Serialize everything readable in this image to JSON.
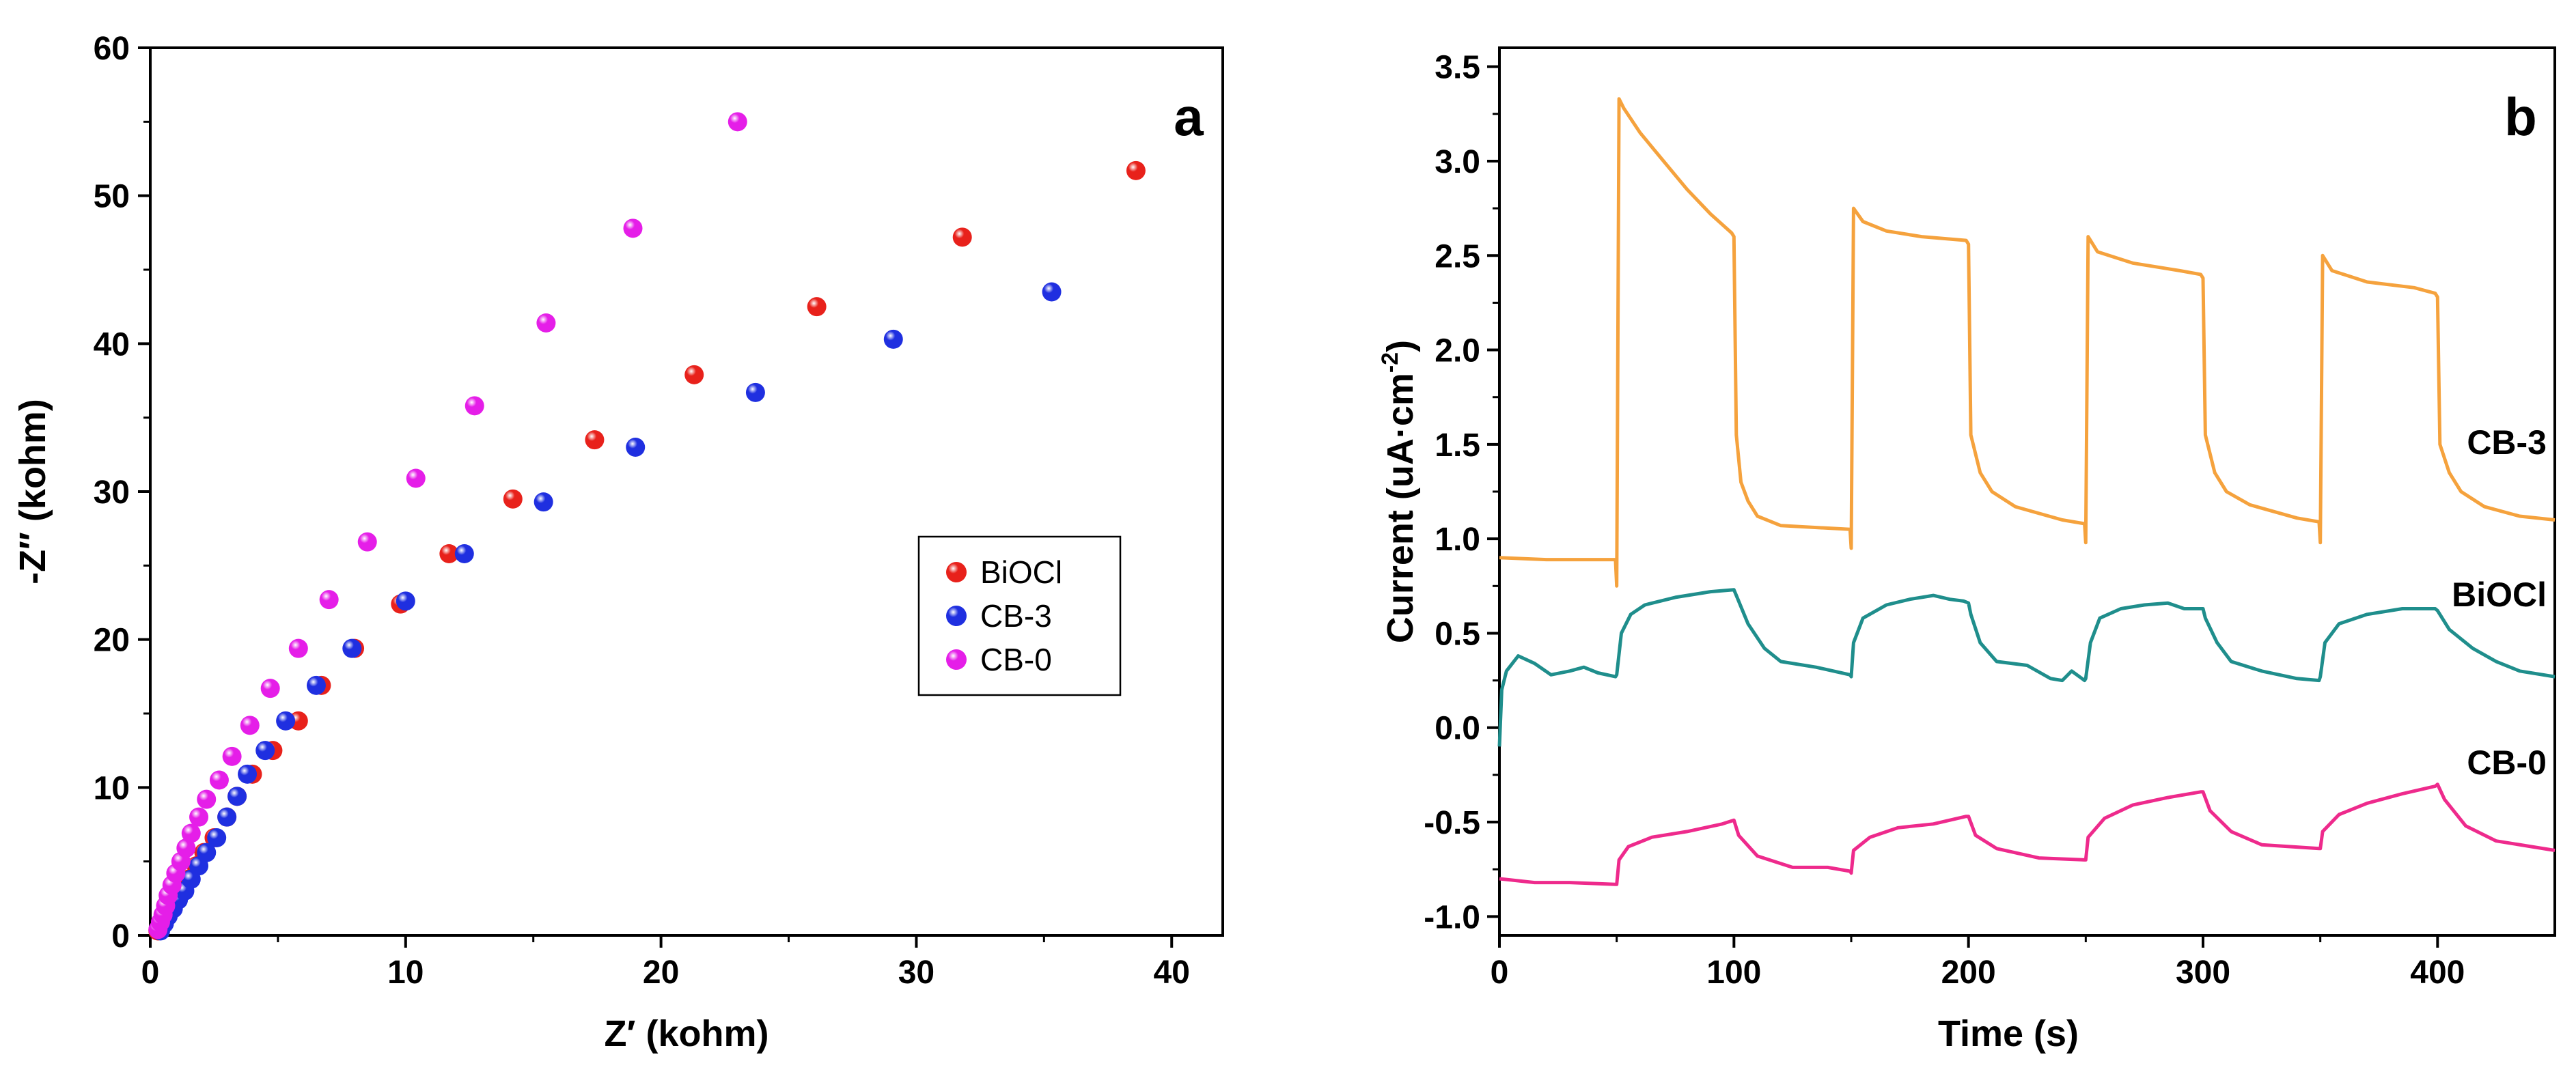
{
  "figure": {
    "panels": [
      "a",
      "b"
    ]
  },
  "chart_data": [
    {
      "type": "scatter",
      "panel_label": "a",
      "title": "",
      "xlabel": "Z′ (kohm)",
      "ylabel": "-Z″ (kohm)",
      "xlim": [
        0,
        42
      ],
      "ylim": [
        0,
        60
      ],
      "xticks": [
        0,
        10,
        20,
        30,
        40
      ],
      "yticks": [
        0,
        10,
        20,
        30,
        40,
        50,
        60
      ],
      "grid": false,
      "legend_position": "center-right",
      "series": [
        {
          "name": "BiOCl",
          "color": "#e8211b",
          "points": [
            [
              0.3,
              0.3
            ],
            [
              0.45,
              0.8
            ],
            [
              0.6,
              1.3
            ],
            [
              0.8,
              1.8
            ],
            [
              1.0,
              2.4
            ],
            [
              1.25,
              3.0
            ],
            [
              1.5,
              3.8
            ],
            [
              1.8,
              4.7
            ],
            [
              2.1,
              5.6
            ],
            [
              2.5,
              6.6
            ],
            [
              3.0,
              8.0
            ],
            [
              3.4,
              9.4
            ],
            [
              4.0,
              10.9
            ],
            [
              4.8,
              12.5
            ],
            [
              5.8,
              14.5
            ],
            [
              6.7,
              16.9
            ],
            [
              8.0,
              19.4
            ],
            [
              9.8,
              22.4
            ],
            [
              11.7,
              25.8
            ],
            [
              14.2,
              29.5
            ],
            [
              17.4,
              33.5
            ],
            [
              21.3,
              37.9
            ],
            [
              26.1,
              42.5
            ],
            [
              31.8,
              47.2
            ],
            [
              38.6,
              51.7
            ]
          ]
        },
        {
          "name": "CB-3",
          "color": "#1f2fe0",
          "points": [
            [
              0.4,
              0.3
            ],
            [
              0.55,
              0.8
            ],
            [
              0.7,
              1.3
            ],
            [
              0.9,
              1.8
            ],
            [
              1.1,
              2.4
            ],
            [
              1.35,
              3.0
            ],
            [
              1.6,
              3.8
            ],
            [
              1.9,
              4.7
            ],
            [
              2.2,
              5.6
            ],
            [
              2.6,
              6.6
            ],
            [
              3.0,
              8.0
            ],
            [
              3.4,
              9.4
            ],
            [
              3.8,
              10.9
            ],
            [
              4.5,
              12.5
            ],
            [
              5.3,
              14.5
            ],
            [
              6.5,
              16.9
            ],
            [
              7.9,
              19.4
            ],
            [
              10.0,
              22.6
            ],
            [
              12.3,
              25.8
            ],
            [
              15.4,
              29.3
            ],
            [
              19.0,
              33.0
            ],
            [
              23.7,
              36.7
            ],
            [
              29.1,
              40.3
            ],
            [
              35.3,
              43.5
            ]
          ]
        },
        {
          "name": "CB-0",
          "color": "#e51ee8",
          "points": [
            [
              0.3,
              0.4
            ],
            [
              0.4,
              0.9
            ],
            [
              0.5,
              1.4
            ],
            [
              0.6,
              2.0
            ],
            [
              0.7,
              2.7
            ],
            [
              0.85,
              3.4
            ],
            [
              1.0,
              4.2
            ],
            [
              1.2,
              5.0
            ],
            [
              1.4,
              5.9
            ],
            [
              1.6,
              6.9
            ],
            [
              1.9,
              8.0
            ],
            [
              2.2,
              9.2
            ],
            [
              2.7,
              10.5
            ],
            [
              3.2,
              12.1
            ],
            [
              3.9,
              14.2
            ],
            [
              4.7,
              16.7
            ],
            [
              5.8,
              19.4
            ],
            [
              7.0,
              22.7
            ],
            [
              8.5,
              26.6
            ],
            [
              10.4,
              30.9
            ],
            [
              12.7,
              35.8
            ],
            [
              15.5,
              41.4
            ],
            [
              18.9,
              47.8
            ],
            [
              23.0,
              55.0
            ]
          ]
        }
      ]
    },
    {
      "type": "line",
      "panel_label": "b",
      "title": "",
      "xlabel": "Time (s)",
      "ylabel": "Current (uA·cm",
      "ylabel_superscript": "-2",
      "ylabel_close": ")",
      "xlim": [
        0,
        450
      ],
      "ylim": [
        -1.1,
        3.6
      ],
      "xticks": [
        0,
        100,
        200,
        300,
        400
      ],
      "yticks": [
        -1.0,
        -0.5,
        0.0,
        0.5,
        1.0,
        1.5,
        2.0,
        2.5,
        3.0,
        3.5
      ],
      "ytick_labels": [
        "-1.0",
        "-0.5",
        "0.0",
        "0.5",
        "1.0",
        "1.5",
        "2.0",
        "2.5",
        "3.0",
        "3.5"
      ],
      "grid": false,
      "light_on_off_period_s": 50,
      "series": [
        {
          "name": "CB-3",
          "color": "#f5a23d",
          "label": "CB-3",
          "points": [
            [
              0,
              0.9
            ],
            [
              20,
              0.89
            ],
            [
              49.5,
              0.89
            ],
            [
              50,
              0.75
            ],
            [
              51,
              3.33
            ],
            [
              53,
              3.28
            ],
            [
              60,
              3.15
            ],
            [
              70,
              3.0
            ],
            [
              80,
              2.85
            ],
            [
              90,
              2.72
            ],
            [
              99,
              2.62
            ],
            [
              100,
              2.6
            ],
            [
              101,
              1.55
            ],
            [
              103,
              1.3
            ],
            [
              106,
              1.2
            ],
            [
              110,
              1.12
            ],
            [
              120,
              1.07
            ],
            [
              149.5,
              1.05
            ],
            [
              150,
              0.95
            ],
            [
              151,
              2.75
            ],
            [
              155,
              2.68
            ],
            [
              165,
              2.63
            ],
            [
              180,
              2.6
            ],
            [
              199,
              2.58
            ],
            [
              200,
              2.56
            ],
            [
              201,
              1.55
            ],
            [
              205,
              1.35
            ],
            [
              210,
              1.25
            ],
            [
              220,
              1.17
            ],
            [
              240,
              1.1
            ],
            [
              249.5,
              1.08
            ],
            [
              250,
              0.98
            ],
            [
              251,
              2.6
            ],
            [
              255,
              2.52
            ],
            [
              270,
              2.46
            ],
            [
              290,
              2.42
            ],
            [
              299,
              2.4
            ],
            [
              300,
              2.38
            ],
            [
              301,
              1.55
            ],
            [
              305,
              1.35
            ],
            [
              310,
              1.25
            ],
            [
              320,
              1.18
            ],
            [
              340,
              1.11
            ],
            [
              349.5,
              1.09
            ],
            [
              350,
              0.98
            ],
            [
              351,
              2.5
            ],
            [
              355,
              2.42
            ],
            [
              370,
              2.36
            ],
            [
              390,
              2.33
            ],
            [
              399,
              2.3
            ],
            [
              400,
              2.28
            ],
            [
              401,
              1.5
            ],
            [
              405,
              1.35
            ],
            [
              410,
              1.25
            ],
            [
              420,
              1.17
            ],
            [
              435,
              1.12
            ],
            [
              450,
              1.1
            ]
          ]
        },
        {
          "name": "BiOCl",
          "color": "#1f8e8c",
          "label": "BiOCl",
          "points": [
            [
              0,
              -0.1
            ],
            [
              1,
              0.2
            ],
            [
              3,
              0.3
            ],
            [
              8,
              0.38
            ],
            [
              15,
              0.34
            ],
            [
              22,
              0.28
            ],
            [
              30,
              0.3
            ],
            [
              36,
              0.32
            ],
            [
              42,
              0.29
            ],
            [
              49.5,
              0.27
            ],
            [
              50,
              0.28
            ],
            [
              52,
              0.5
            ],
            [
              56,
              0.6
            ],
            [
              62,
              0.65
            ],
            [
              75,
              0.69
            ],
            [
              90,
              0.72
            ],
            [
              100,
              0.73
            ],
            [
              101,
              0.7
            ],
            [
              106,
              0.55
            ],
            [
              113,
              0.42
            ],
            [
              120,
              0.35
            ],
            [
              135,
              0.32
            ],
            [
              149.5,
              0.28
            ],
            [
              150,
              0.27
            ],
            [
              151,
              0.45
            ],
            [
              155,
              0.58
            ],
            [
              165,
              0.65
            ],
            [
              175,
              0.68
            ],
            [
              185,
              0.7
            ],
            [
              192,
              0.68
            ],
            [
              198,
              0.67
            ],
            [
              200,
              0.66
            ],
            [
              201,
              0.6
            ],
            [
              205,
              0.45
            ],
            [
              212,
              0.35
            ],
            [
              225,
              0.33
            ],
            [
              235,
              0.26
            ],
            [
              240,
              0.25
            ],
            [
              244,
              0.3
            ],
            [
              249.5,
              0.25
            ],
            [
              250,
              0.26
            ],
            [
              252,
              0.45
            ],
            [
              256,
              0.58
            ],
            [
              265,
              0.63
            ],
            [
              275,
              0.65
            ],
            [
              285,
              0.66
            ],
            [
              292,
              0.63
            ],
            [
              300,
              0.63
            ],
            [
              301,
              0.58
            ],
            [
              306,
              0.45
            ],
            [
              312,
              0.35
            ],
            [
              325,
              0.3
            ],
            [
              340,
              0.26
            ],
            [
              349.5,
              0.25
            ],
            [
              350,
              0.27
            ],
            [
              352,
              0.45
            ],
            [
              358,
              0.55
            ],
            [
              370,
              0.6
            ],
            [
              385,
              0.63
            ],
            [
              399,
              0.63
            ],
            [
              400,
              0.62
            ],
            [
              405,
              0.52
            ],
            [
              415,
              0.42
            ],
            [
              425,
              0.35
            ],
            [
              435,
              0.3
            ],
            [
              450,
              0.27
            ]
          ]
        },
        {
          "name": "CB-0",
          "color": "#ee2a8c",
          "label": "CB-0",
          "points": [
            [
              0,
              -0.8
            ],
            [
              15,
              -0.82
            ],
            [
              30,
              -0.82
            ],
            [
              49.5,
              -0.83
            ],
            [
              50,
              -0.83
            ],
            [
              51,
              -0.7
            ],
            [
              55,
              -0.63
            ],
            [
              65,
              -0.58
            ],
            [
              80,
              -0.55
            ],
            [
              95,
              -0.51
            ],
            [
              100,
              -0.49
            ],
            [
              102,
              -0.57
            ],
            [
              110,
              -0.68
            ],
            [
              125,
              -0.74
            ],
            [
              140,
              -0.74
            ],
            [
              149.5,
              -0.76
            ],
            [
              150,
              -0.77
            ],
            [
              151,
              -0.65
            ],
            [
              158,
              -0.58
            ],
            [
              170,
              -0.53
            ],
            [
              185,
              -0.51
            ],
            [
              199,
              -0.47
            ],
            [
              200,
              -0.47
            ],
            [
              203,
              -0.57
            ],
            [
              212,
              -0.64
            ],
            [
              230,
              -0.69
            ],
            [
              249.5,
              -0.7
            ],
            [
              250,
              -0.7
            ],
            [
              251,
              -0.58
            ],
            [
              258,
              -0.48
            ],
            [
              270,
              -0.41
            ],
            [
              285,
              -0.37
            ],
            [
              299,
              -0.34
            ],
            [
              300,
              -0.34
            ],
            [
              303,
              -0.44
            ],
            [
              312,
              -0.55
            ],
            [
              325,
              -0.62
            ],
            [
              349.5,
              -0.64
            ],
            [
              350,
              -0.64
            ],
            [
              351,
              -0.55
            ],
            [
              358,
              -0.46
            ],
            [
              370,
              -0.4
            ],
            [
              385,
              -0.35
            ],
            [
              399,
              -0.31
            ],
            [
              400,
              -0.3
            ],
            [
              403,
              -0.38
            ],
            [
              412,
              -0.52
            ],
            [
              425,
              -0.6
            ],
            [
              440,
              -0.63
            ],
            [
              450,
              -0.65
            ]
          ]
        }
      ]
    }
  ]
}
